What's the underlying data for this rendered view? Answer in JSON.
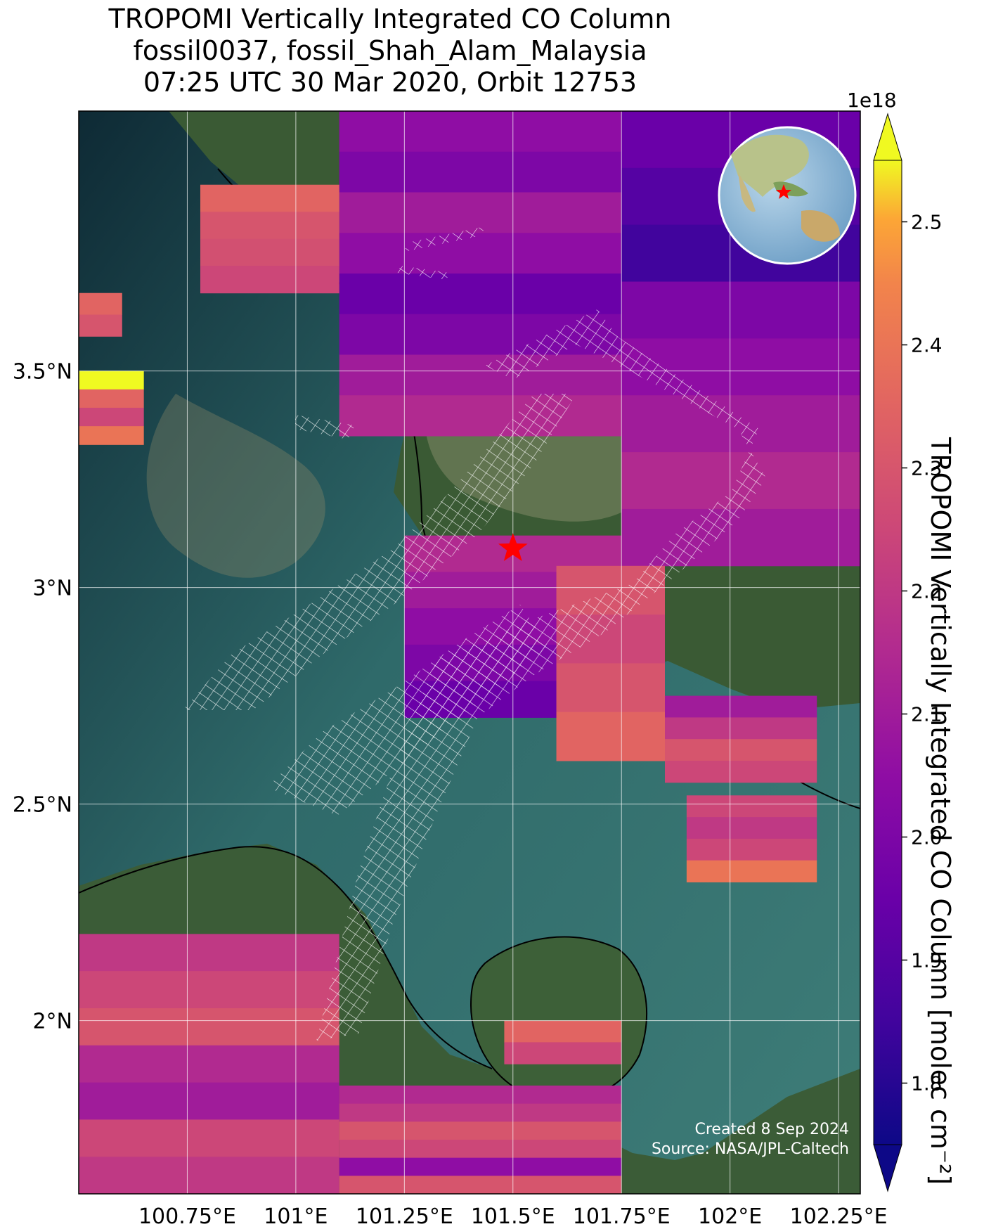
{
  "title": {
    "line1": "TROPOMI Vertically Integrated CO Column",
    "line2": "fossil0037, fossil_Shah_Alam_Malaysia",
    "line3": "07:25 UTC 30 Mar 2020, Orbit 12753"
  },
  "footnote": {
    "created": "Created 8 Sep 2024",
    "source": "Source: NASA/JPL-Caltech"
  },
  "map": {
    "lon_ticks": [
      "100.75°E",
      "101°E",
      "101.25°E",
      "101.5°E",
      "101.75°E",
      "102°E",
      "102.25°E"
    ],
    "lat_ticks": [
      "3.5°N",
      "3°N",
      "2.5°N",
      "2°N"
    ],
    "lon_range": [
      100.5,
      102.3
    ],
    "lat_range": [
      1.6,
      4.1
    ],
    "gridlines": true,
    "basemap": "satellite imagery",
    "target_marker": {
      "name": "fossil_Shah_Alam_Malaysia",
      "lon": 101.5,
      "lat": 3.09,
      "color": "#ff0000",
      "icon": "star-icon"
    },
    "inset_globe": {
      "position": "top-right",
      "marker": "star-icon",
      "marker_color": "#ff0000"
    }
  },
  "colorbar": {
    "label": "TROPOMI Vertically Integrated CO Column [molec cm⁻²]",
    "scale_exponent": "1e18",
    "ticks": [
      "1.8",
      "1.9",
      "2.0",
      "2.1",
      "2.2",
      "2.3",
      "2.4",
      "2.5"
    ],
    "tick_values": [
      1.8,
      1.9,
      2.0,
      2.1,
      2.2,
      2.3,
      2.4,
      2.5
    ],
    "vmin": 1.75,
    "vmax": 2.55,
    "colormap": "plasma",
    "extend": "both"
  },
  "chart_data": {
    "type": "heatmap",
    "title": "TROPOMI Vertically Integrated CO Column",
    "units": "molec cm⁻²",
    "scale": "1e18",
    "swaths": [
      {
        "name": "swath-north-center",
        "lon": [
          101.1,
          101.75
        ],
        "lat": [
          3.35,
          4.1
        ],
        "values": [
          2.05,
          2.0,
          2.1,
          2.05,
          1.95,
          2.0,
          2.1,
          2.15
        ]
      },
      {
        "name": "swath-north-east",
        "lon": [
          101.75,
          102.3
        ],
        "lat": [
          3.05,
          4.1
        ],
        "values": [
          1.95,
          1.9,
          1.85,
          2.0,
          2.05,
          2.1,
          2.15,
          2.1
        ]
      },
      {
        "name": "swath-northwest-orange",
        "lon": [
          100.78,
          101.1
        ],
        "lat": [
          3.68,
          3.93
        ],
        "values": [
          2.35,
          2.3,
          2.28,
          2.25
        ]
      },
      {
        "name": "swath-west-edge-upper",
        "lon": [
          100.5,
          100.6
        ],
        "lat": [
          3.58,
          3.68
        ],
        "values": [
          2.35,
          2.3
        ]
      },
      {
        "name": "swath-west-edge-lower",
        "lon": [
          100.5,
          100.65
        ],
        "lat": [
          3.33,
          3.5
        ],
        "values": [
          2.55,
          2.35,
          2.25,
          2.4
        ]
      },
      {
        "name": "swath-center",
        "lon": [
          101.25,
          101.75
        ],
        "lat": [
          2.7,
          3.12
        ],
        "values": [
          2.15,
          2.1,
          2.05,
          2.0,
          1.95
        ]
      },
      {
        "name": "swath-center-orange",
        "lon": [
          101.6,
          101.85
        ],
        "lat": [
          2.6,
          3.05
        ],
        "values": [
          2.3,
          2.25,
          2.3,
          2.35
        ]
      },
      {
        "name": "swath-east-middle",
        "lon": [
          101.85,
          102.2
        ],
        "lat": [
          2.55,
          2.75
        ],
        "values": [
          2.1,
          2.2,
          2.3,
          2.25
        ]
      },
      {
        "name": "swath-east-lower",
        "lon": [
          101.9,
          102.2
        ],
        "lat": [
          2.32,
          2.52
        ],
        "values": [
          2.25,
          2.2,
          2.25,
          2.4
        ]
      },
      {
        "name": "swath-southwest",
        "lon": [
          100.5,
          101.1
        ],
        "lat": [
          1.6,
          2.2
        ],
        "values": [
          2.2,
          2.25,
          2.3,
          2.15,
          2.1,
          2.25,
          2.2
        ]
      },
      {
        "name": "swath-south",
        "lon": [
          101.1,
          101.75
        ],
        "lat": [
          1.6,
          1.85
        ],
        "values": [
          2.15,
          2.2,
          2.3,
          2.25,
          2.05,
          2.3
        ]
      },
      {
        "name": "swath-south-island",
        "lon": [
          101.48,
          101.75
        ],
        "lat": [
          1.9,
          2.0
        ],
        "values": [
          2.35,
          2.25
        ]
      }
    ]
  }
}
